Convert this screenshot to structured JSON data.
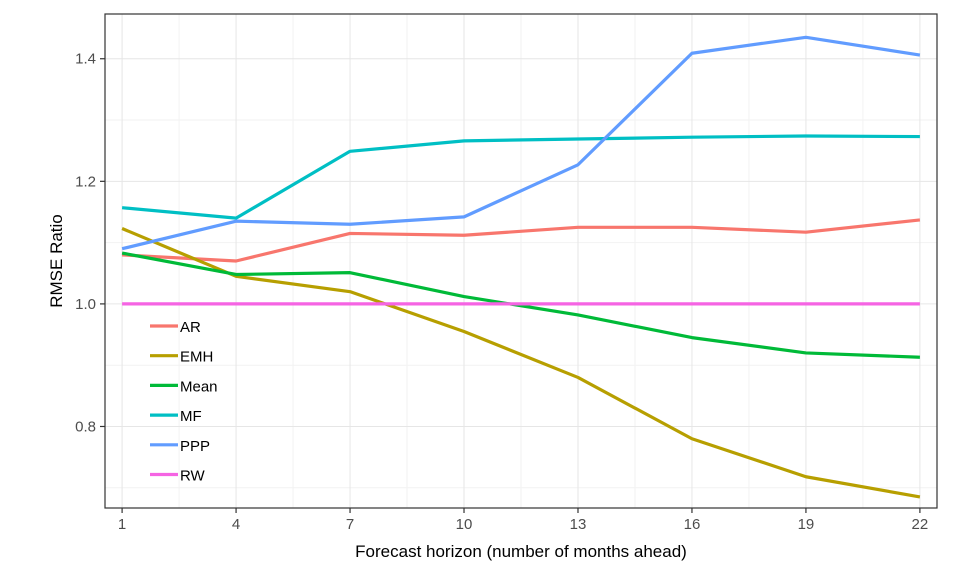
{
  "chart_data": {
    "type": "line",
    "title": "",
    "xlabel": "Forecast horizon (number of months ahead)",
    "ylabel": "RMSE Ratio",
    "x": [
      1,
      4,
      7,
      10,
      13,
      16,
      19,
      22
    ],
    "x_ticks": [
      "1",
      "4",
      "7",
      "10",
      "13",
      "16",
      "19",
      "22"
    ],
    "y_ticks": [
      "0.8",
      "1.0",
      "1.2",
      "1.4"
    ],
    "xlim": [
      0.55,
      22.45
    ],
    "ylim": [
      0.667,
      1.473
    ],
    "grid": true,
    "legend": "bottom-left",
    "series": [
      {
        "name": "AR",
        "color": "#F8766D",
        "values": [
          1.08,
          1.07,
          1.115,
          1.112,
          1.125,
          1.125,
          1.117,
          1.137
        ]
      },
      {
        "name": "EMH",
        "color": "#B79F00",
        "values": [
          1.123,
          1.045,
          1.02,
          0.955,
          0.88,
          0.78,
          0.718,
          0.685
        ]
      },
      {
        "name": "Mean",
        "color": "#00BA38",
        "values": [
          1.083,
          1.048,
          1.051,
          1.012,
          0.982,
          0.945,
          0.92,
          0.913
        ]
      },
      {
        "name": "MF",
        "color": "#00BFC4",
        "values": [
          1.157,
          1.14,
          1.249,
          1.266,
          1.269,
          1.272,
          1.274,
          1.273
        ]
      },
      {
        "name": "PPP",
        "color": "#619CFF",
        "values": [
          1.09,
          1.135,
          1.13,
          1.142,
          1.227,
          1.409,
          1.435,
          1.406
        ]
      },
      {
        "name": "RW",
        "color": "#F564E3",
        "values": [
          1.0,
          1.0,
          1.0,
          1.0,
          1.0,
          1.0,
          1.0,
          1.0
        ]
      }
    ]
  }
}
